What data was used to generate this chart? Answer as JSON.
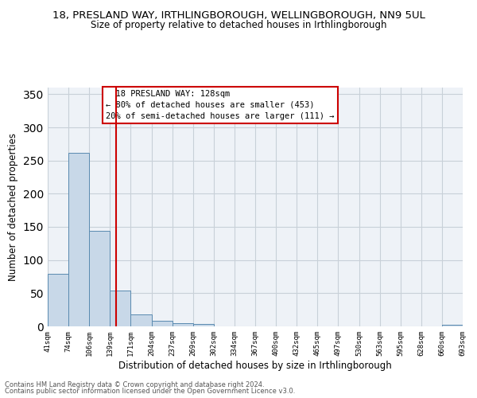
{
  "title": "18, PRESLAND WAY, IRTHLINGBOROUGH, WELLINGBOROUGH, NN9 5UL",
  "subtitle": "Size of property relative to detached houses in Irthlingborough",
  "xlabel": "Distribution of detached houses by size in Irthlingborough",
  "ylabel": "Number of detached properties",
  "bar_values": [
    79,
    262,
    144,
    54,
    18,
    9,
    5,
    4,
    0,
    0,
    0,
    0,
    0,
    0,
    0,
    0,
    0,
    0,
    0,
    3
  ],
  "categories": [
    "41sqm",
    "74sqm",
    "106sqm",
    "139sqm",
    "171sqm",
    "204sqm",
    "237sqm",
    "269sqm",
    "302sqm",
    "334sqm",
    "367sqm",
    "400sqm",
    "432sqm",
    "465sqm",
    "497sqm",
    "530sqm",
    "563sqm",
    "595sqm",
    "628sqm",
    "660sqm",
    "693sqm"
  ],
  "bar_color": "#c8d8e8",
  "bar_edge_color": "#5a8ab0",
  "vline_x": 2.78,
  "vline_color": "#cc0000",
  "annotation_text": "  18 PRESLAND WAY: 128sqm\n← 80% of detached houses are smaller (453)\n20% of semi-detached houses are larger (111) →",
  "annotation_box_color": "#cc0000",
  "ylim": [
    0,
    360
  ],
  "yticks": [
    0,
    50,
    100,
    150,
    200,
    250,
    300,
    350
  ],
  "footer1": "Contains HM Land Registry data © Crown copyright and database right 2024.",
  "footer2": "Contains public sector information licensed under the Open Government Licence v3.0.",
  "bg_color": "#eef2f7",
  "grid_color": "#c8d0d8"
}
